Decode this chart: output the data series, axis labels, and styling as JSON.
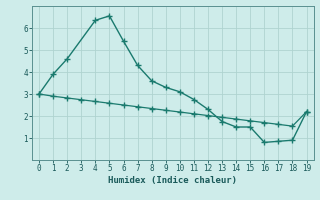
{
  "xlabel": "Humidex (Indice chaleur)",
  "xlim_min": -0.5,
  "xlim_max": 19.5,
  "ylim_min": 0,
  "ylim_max": 7,
  "yticks": [
    1,
    2,
    3,
    4,
    5,
    6
  ],
  "xticks": [
    0,
    1,
    2,
    3,
    4,
    5,
    6,
    7,
    8,
    9,
    10,
    11,
    12,
    13,
    14,
    15,
    16,
    17,
    18,
    19
  ],
  "line1_x": [
    0,
    1,
    2,
    4,
    5,
    6,
    7,
    8,
    9,
    10,
    11,
    12,
    13,
    14,
    15,
    16,
    17,
    18,
    19
  ],
  "line1_y": [
    3.0,
    3.9,
    4.6,
    6.35,
    6.55,
    5.4,
    4.3,
    3.6,
    3.3,
    3.1,
    2.75,
    2.3,
    1.75,
    1.5,
    1.5,
    0.8,
    0.85,
    0.9,
    2.2
  ],
  "line2_x": [
    0,
    1,
    2,
    3,
    4,
    5,
    6,
    7,
    8,
    9,
    10,
    11,
    12,
    13,
    14,
    15,
    16,
    17,
    18,
    19
  ],
  "line2_y": [
    3.0,
    2.9,
    2.82,
    2.74,
    2.66,
    2.58,
    2.5,
    2.42,
    2.34,
    2.26,
    2.18,
    2.1,
    2.02,
    1.94,
    1.86,
    1.78,
    1.7,
    1.62,
    1.54,
    2.2
  ],
  "line_color": "#1a7a6e",
  "bg_color": "#ceecea",
  "grid_color": "#afd4d0",
  "spine_color": "#5a9090",
  "xlabel_color": "#1a5a5a",
  "tick_label_color": "#1a5a5a"
}
